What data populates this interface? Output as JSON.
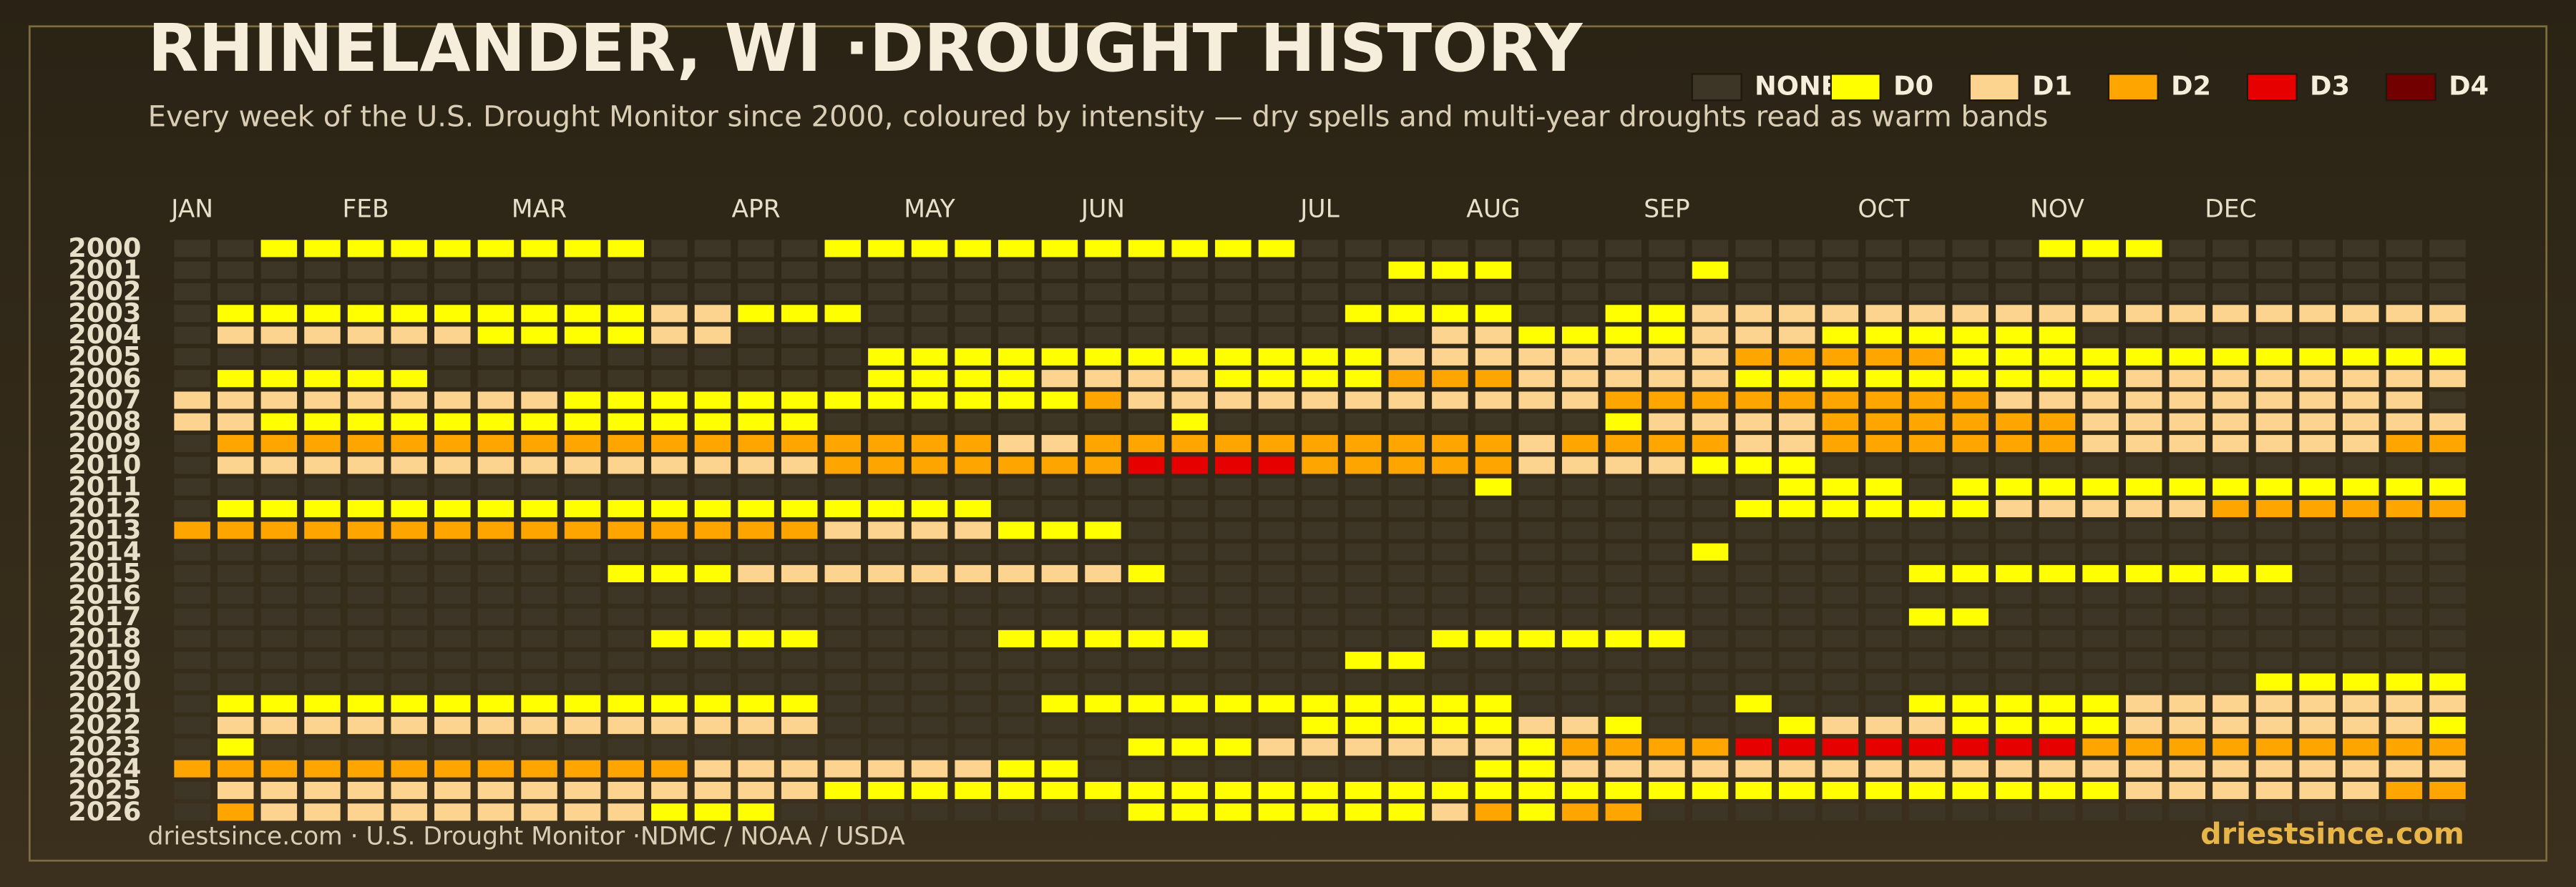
{
  "chart_data": {
    "type": "heatmap",
    "title": "RHINELANDER, WI ·DROUGHT HISTORY",
    "subtitle": "Every week of the U.S. Drought Monitor since 2000, coloured by intensity — dry spells and multi-year droughts read as warm bands",
    "source": "driestsince.com  · U.S. Drought Monitor ·NDMC / NOAA / USDA",
    "brand": "driestsince.com",
    "levels": [
      {
        "label": "NONE",
        "color": "#3d3526"
      },
      {
        "label": "D0",
        "color": "#ffff00"
      },
      {
        "label": "D1",
        "color": "#fcd38f"
      },
      {
        "label": "D2",
        "color": "#ffa500"
      },
      {
        "label": "D3",
        "color": "#e60000"
      },
      {
        "label": "D4",
        "color": "#730000"
      }
    ],
    "xticks": [
      {
        "value": 0,
        "label": "JAN"
      },
      {
        "value": 4,
        "label": "FEB"
      },
      {
        "value": 8,
        "label": "MAR"
      },
      {
        "value": 13,
        "label": "APR"
      },
      {
        "value": 17,
        "label": "MAY"
      },
      {
        "value": 21,
        "label": "JUN"
      },
      {
        "value": 26,
        "label": "JUL"
      },
      {
        "value": 30,
        "label": "AUG"
      },
      {
        "value": 34,
        "label": "SEP"
      },
      {
        "value": 39,
        "label": "OCT"
      },
      {
        "value": 43,
        "label": "NOV"
      },
      {
        "value": 47,
        "label": "DEC"
      }
    ],
    "xlim": [
      0,
      53
    ],
    "categories": [
      "2000",
      "2001",
      "2002",
      "2003",
      "2004",
      "2005",
      "2006",
      "2007",
      "2008",
      "2009",
      "2010",
      "2011",
      "2012",
      "2013",
      "2014",
      "2015",
      "2016",
      "2017",
      "2018",
      "2019",
      "2020",
      "2021",
      "2022",
      "2023",
      "2024",
      "2025",
      "2026"
    ],
    "values": [
      [
        0,
        0,
        1,
        1,
        1,
        1,
        1,
        1,
        1,
        1,
        1,
        0,
        0,
        0,
        0,
        1,
        1,
        1,
        1,
        1,
        1,
        1,
        1,
        1,
        1,
        1,
        0,
        0,
        0,
        0,
        0,
        0,
        0,
        0,
        0,
        0,
        0,
        0,
        0,
        0,
        0,
        0,
        0,
        1,
        1,
        1,
        0,
        0,
        0,
        0,
        0,
        0,
        0
      ],
      [
        0,
        0,
        0,
        0,
        0,
        0,
        0,
        0,
        0,
        0,
        0,
        0,
        0,
        0,
        0,
        0,
        0,
        0,
        0,
        0,
        0,
        0,
        0,
        0,
        0,
        0,
        0,
        0,
        1,
        1,
        1,
        0,
        0,
        0,
        0,
        1,
        0,
        0,
        0,
        0,
        0,
        0,
        0,
        0,
        0,
        0,
        0,
        0,
        0,
        0,
        0,
        0,
        0
      ],
      [
        0,
        0,
        0,
        0,
        0,
        0,
        0,
        0,
        0,
        0,
        0,
        0,
        0,
        0,
        0,
        0,
        0,
        0,
        0,
        0,
        0,
        0,
        0,
        0,
        0,
        0,
        0,
        0,
        0,
        0,
        0,
        0,
        0,
        0,
        0,
        0,
        0,
        0,
        0,
        0,
        0,
        0,
        0,
        0,
        0,
        0,
        0,
        0,
        0,
        0,
        0,
        0,
        0
      ],
      [
        0,
        1,
        1,
        1,
        1,
        1,
        1,
        1,
        1,
        1,
        1,
        2,
        2,
        1,
        1,
        1,
        0,
        0,
        0,
        0,
        0,
        0,
        0,
        0,
        0,
        0,
        0,
        1,
        1,
        1,
        1,
        0,
        0,
        1,
        1,
        2,
        2,
        2,
        2,
        2,
        2,
        2,
        2,
        2,
        2,
        2,
        2,
        2,
        2,
        2,
        2,
        2,
        2
      ],
      [
        0,
        2,
        2,
        2,
        2,
        2,
        2,
        1,
        1,
        1,
        1,
        2,
        2,
        0,
        0,
        0,
        0,
        0,
        0,
        0,
        0,
        0,
        0,
        0,
        0,
        0,
        0,
        0,
        0,
        2,
        2,
        1,
        1,
        1,
        1,
        2,
        2,
        2,
        1,
        1,
        1,
        1,
        1,
        1,
        0,
        0,
        0,
        0,
        0,
        0,
        0,
        0,
        0
      ],
      [
        0,
        0,
        0,
        0,
        0,
        0,
        0,
        0,
        0,
        0,
        0,
        0,
        0,
        0,
        0,
        0,
        1,
        1,
        1,
        1,
        1,
        1,
        1,
        1,
        1,
        1,
        1,
        1,
        2,
        2,
        2,
        2,
        2,
        2,
        2,
        2,
        3,
        3,
        3,
        3,
        3,
        1,
        1,
        1,
        1,
        1,
        1,
        1,
        1,
        1,
        1,
        1,
        1
      ],
      [
        0,
        1,
        1,
        1,
        1,
        1,
        0,
        0,
        0,
        0,
        0,
        0,
        0,
        0,
        0,
        0,
        1,
        1,
        1,
        1,
        2,
        2,
        2,
        2,
        1,
        1,
        1,
        1,
        3,
        3,
        3,
        2,
        2,
        2,
        2,
        2,
        1,
        1,
        1,
        1,
        1,
        1,
        1,
        1,
        1,
        2,
        2,
        2,
        2,
        2,
        2,
        2,
        2
      ],
      [
        2,
        2,
        2,
        2,
        2,
        2,
        2,
        2,
        2,
        1,
        1,
        1,
        1,
        1,
        1,
        1,
        1,
        1,
        1,
        1,
        1,
        3,
        2,
        2,
        2,
        2,
        2,
        2,
        2,
        2,
        2,
        2,
        2,
        3,
        3,
        3,
        3,
        3,
        3,
        3,
        3,
        3,
        2,
        2,
        2,
        2,
        2,
        2,
        2,
        2,
        2,
        2,
        0
      ],
      [
        2,
        2,
        1,
        1,
        1,
        1,
        1,
        1,
        1,
        1,
        1,
        1,
        1,
        1,
        1,
        0,
        0,
        0,
        0,
        0,
        0,
        0,
        0,
        1,
        0,
        0,
        0,
        0,
        0,
        0,
        0,
        0,
        0,
        1,
        2,
        2,
        2,
        2,
        3,
        3,
        3,
        3,
        3,
        3,
        2,
        2,
        2,
        2,
        2,
        2,
        2,
        2,
        2
      ],
      [
        0,
        3,
        3,
        3,
        3,
        3,
        3,
        3,
        3,
        3,
        3,
        3,
        3,
        3,
        3,
        3,
        3,
        3,
        3,
        2,
        2,
        3,
        3,
        3,
        3,
        3,
        3,
        3,
        3,
        3,
        3,
        2,
        3,
        3,
        3,
        3,
        2,
        2,
        3,
        3,
        3,
        3,
        3,
        3,
        2,
        2,
        2,
        2,
        2,
        2,
        2,
        3,
        3
      ],
      [
        0,
        2,
        2,
        2,
        2,
        2,
        2,
        2,
        2,
        2,
        2,
        2,
        2,
        2,
        2,
        3,
        3,
        3,
        3,
        3,
        3,
        3,
        4,
        4,
        4,
        4,
        3,
        3,
        3,
        3,
        3,
        2,
        2,
        2,
        2,
        1,
        1,
        1,
        0,
        0,
        0,
        0,
        0,
        0,
        0,
        0,
        0,
        0,
        0,
        0,
        0,
        0,
        0
      ],
      [
        0,
        0,
        0,
        0,
        0,
        0,
        0,
        0,
        0,
        0,
        0,
        0,
        0,
        0,
        0,
        0,
        0,
        0,
        0,
        0,
        0,
        0,
        0,
        0,
        0,
        0,
        0,
        0,
        0,
        0,
        1,
        0,
        0,
        0,
        0,
        0,
        0,
        1,
        1,
        1,
        0,
        1,
        1,
        1,
        1,
        1,
        1,
        1,
        1,
        1,
        1,
        1,
        1
      ],
      [
        0,
        1,
        1,
        1,
        1,
        1,
        1,
        1,
        1,
        1,
        1,
        1,
        1,
        1,
        1,
        1,
        1,
        1,
        1,
        0,
        0,
        0,
        0,
        0,
        0,
        0,
        0,
        0,
        0,
        0,
        0,
        0,
        0,
        0,
        0,
        0,
        1,
        1,
        1,
        1,
        1,
        1,
        2,
        2,
        2,
        2,
        2,
        3,
        3,
        3,
        3,
        3,
        3
      ],
      [
        3,
        3,
        3,
        3,
        3,
        3,
        3,
        3,
        3,
        3,
        3,
        3,
        3,
        3,
        3,
        2,
        2,
        2,
        2,
        1,
        1,
        1,
        0,
        0,
        0,
        0,
        0,
        0,
        0,
        0,
        0,
        0,
        0,
        0,
        0,
        0,
        0,
        0,
        0,
        0,
        0,
        0,
        0,
        0,
        0,
        0,
        0,
        0,
        0,
        0,
        0,
        0,
        0
      ],
      [
        0,
        0,
        0,
        0,
        0,
        0,
        0,
        0,
        0,
        0,
        0,
        0,
        0,
        0,
        0,
        0,
        0,
        0,
        0,
        0,
        0,
        0,
        0,
        0,
        0,
        0,
        0,
        0,
        0,
        0,
        0,
        0,
        0,
        0,
        0,
        1,
        0,
        0,
        0,
        0,
        0,
        0,
        0,
        0,
        0,
        0,
        0,
        0,
        0,
        0,
        0,
        0,
        0
      ],
      [
        0,
        0,
        0,
        0,
        0,
        0,
        0,
        0,
        0,
        0,
        1,
        1,
        1,
        2,
        2,
        2,
        2,
        2,
        2,
        2,
        2,
        2,
        1,
        0,
        0,
        0,
        0,
        0,
        0,
        0,
        0,
        0,
        0,
        0,
        0,
        0,
        0,
        0,
        0,
        0,
        1,
        1,
        1,
        1,
        1,
        1,
        1,
        1,
        1,
        0,
        0,
        0,
        0
      ],
      [
        0,
        0,
        0,
        0,
        0,
        0,
        0,
        0,
        0,
        0,
        0,
        0,
        0,
        0,
        0,
        0,
        0,
        0,
        0,
        0,
        0,
        0,
        0,
        0,
        0,
        0,
        0,
        0,
        0,
        0,
        0,
        0,
        0,
        0,
        0,
        0,
        0,
        0,
        0,
        0,
        0,
        0,
        0,
        0,
        0,
        0,
        0,
        0,
        0,
        0,
        0,
        0,
        0
      ],
      [
        0,
        0,
        0,
        0,
        0,
        0,
        0,
        0,
        0,
        0,
        0,
        0,
        0,
        0,
        0,
        0,
        0,
        0,
        0,
        0,
        0,
        0,
        0,
        0,
        0,
        0,
        0,
        0,
        0,
        0,
        0,
        0,
        0,
        0,
        0,
        0,
        0,
        0,
        0,
        0,
        1,
        1,
        0,
        0,
        0,
        0,
        0,
        0,
        0,
        0,
        0,
        0,
        0
      ],
      [
        0,
        0,
        0,
        0,
        0,
        0,
        0,
        0,
        0,
        0,
        0,
        1,
        1,
        1,
        1,
        0,
        0,
        0,
        0,
        1,
        1,
        1,
        1,
        1,
        0,
        0,
        0,
        0,
        0,
        1,
        1,
        1,
        1,
        1,
        1,
        0,
        0,
        0,
        0,
        0,
        0,
        0,
        0,
        0,
        0,
        0,
        0,
        0,
        0,
        0,
        0,
        0,
        0
      ],
      [
        0,
        0,
        0,
        0,
        0,
        0,
        0,
        0,
        0,
        0,
        0,
        0,
        0,
        0,
        0,
        0,
        0,
        0,
        0,
        0,
        0,
        0,
        0,
        0,
        0,
        0,
        0,
        1,
        1,
        0,
        0,
        0,
        0,
        0,
        0,
        0,
        0,
        0,
        0,
        0,
        0,
        0,
        0,
        0,
        0,
        0,
        0,
        0,
        0,
        0,
        0,
        0,
        0
      ],
      [
        0,
        0,
        0,
        0,
        0,
        0,
        0,
        0,
        0,
        0,
        0,
        0,
        0,
        0,
        0,
        0,
        0,
        0,
        0,
        0,
        0,
        0,
        0,
        0,
        0,
        0,
        0,
        0,
        0,
        0,
        0,
        0,
        0,
        0,
        0,
        0,
        0,
        0,
        0,
        0,
        0,
        0,
        0,
        0,
        0,
        0,
        0,
        0,
        1,
        1,
        1,
        1,
        1
      ],
      [
        0,
        1,
        1,
        1,
        1,
        1,
        1,
        1,
        1,
        1,
        1,
        1,
        1,
        1,
        1,
        0,
        0,
        0,
        0,
        0,
        1,
        1,
        1,
        1,
        1,
        1,
        1,
        1,
        1,
        1,
        1,
        0,
        0,
        0,
        0,
        0,
        1,
        0,
        0,
        0,
        1,
        1,
        1,
        1,
        1,
        2,
        2,
        2,
        2,
        2,
        2,
        2,
        2
      ],
      [
        0,
        2,
        2,
        2,
        2,
        2,
        2,
        2,
        2,
        2,
        2,
        2,
        2,
        2,
        2,
        0,
        0,
        0,
        0,
        0,
        0,
        0,
        0,
        0,
        0,
        0,
        1,
        1,
        1,
        1,
        1,
        2,
        2,
        1,
        0,
        0,
        0,
        1,
        2,
        2,
        2,
        1,
        1,
        1,
        1,
        2,
        2,
        2,
        2,
        2,
        2,
        2,
        1
      ],
      [
        0,
        1,
        0,
        0,
        0,
        0,
        0,
        0,
        0,
        0,
        0,
        0,
        0,
        0,
        0,
        0,
        0,
        0,
        0,
        0,
        0,
        0,
        1,
        1,
        1,
        2,
        2,
        2,
        2,
        2,
        2,
        1,
        3,
        3,
        3,
        3,
        4,
        4,
        4,
        4,
        4,
        4,
        4,
        4,
        3,
        3,
        3,
        3,
        3,
        3,
        3,
        3,
        3
      ],
      [
        3,
        3,
        3,
        3,
        3,
        3,
        3,
        3,
        3,
        3,
        3,
        3,
        2,
        2,
        2,
        2,
        2,
        2,
        2,
        1,
        1,
        0,
        0,
        0,
        0,
        0,
        0,
        0,
        0,
        0,
        1,
        1,
        2,
        2,
        2,
        2,
        2,
        2,
        2,
        2,
        2,
        2,
        2,
        2,
        2,
        2,
        2,
        2,
        2,
        2,
        2,
        2,
        2
      ],
      [
        0,
        2,
        2,
        2,
        2,
        2,
        2,
        2,
        2,
        2,
        2,
        2,
        2,
        2,
        2,
        1,
        1,
        1,
        1,
        1,
        1,
        1,
        1,
        1,
        1,
        1,
        1,
        1,
        1,
        1,
        1,
        1,
        1,
        1,
        1,
        1,
        1,
        1,
        1,
        1,
        1,
        1,
        1,
        1,
        1,
        2,
        2,
        2,
        2,
        2,
        2,
        3,
        3
      ],
      [
        0,
        3,
        2,
        2,
        2,
        2,
        2,
        2,
        2,
        2,
        2,
        1,
        1,
        1,
        0,
        0,
        0,
        0,
        0,
        0,
        0,
        0,
        1,
        1,
        1,
        1,
        1,
        1,
        1,
        2,
        3,
        1,
        3,
        3,
        0,
        0,
        0,
        0,
        0,
        0,
        0,
        0,
        0,
        0,
        0,
        0,
        0,
        0,
        0,
        0,
        0,
        0,
        0
      ]
    ]
  }
}
